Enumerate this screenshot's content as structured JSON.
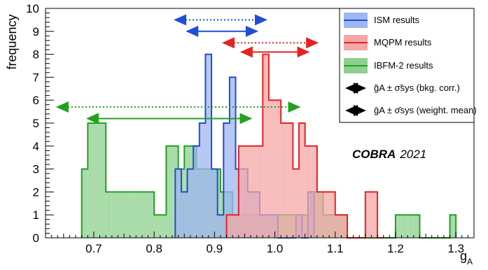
{
  "chart_data": {
    "type": "histogram",
    "xlabel_main": "g",
    "xlabel_sub": "A",
    "ylabel": "frequency",
    "xlim": [
      0.62,
      1.33
    ],
    "ylim": [
      0,
      10
    ],
    "bin_width": 0.01,
    "x_ticks": [
      "0.7",
      "0.8",
      "0.9",
      "1.0",
      "1.1",
      "1.2",
      "1.3"
    ],
    "x_tick_values": [
      0.7,
      0.8,
      0.9,
      1.0,
      1.1,
      1.2,
      1.3
    ],
    "y_ticks": [
      "0",
      "1",
      "2",
      "3",
      "4",
      "5",
      "6",
      "7",
      "8",
      "9",
      "10"
    ],
    "y_tick_values": [
      0,
      1,
      2,
      3,
      4,
      5,
      6,
      7,
      8,
      9,
      10
    ],
    "series": [
      {
        "name": "IBFM-2 results",
        "stroke": "#22a022",
        "fill": "#8ed08e",
        "bins": [
          [
            0.68,
            3
          ],
          [
            0.69,
            5
          ],
          [
            0.7,
            5
          ],
          [
            0.71,
            5
          ],
          [
            0.72,
            2
          ],
          [
            0.73,
            2
          ],
          [
            0.74,
            2
          ],
          [
            0.75,
            2
          ],
          [
            0.76,
            2
          ],
          [
            0.77,
            2
          ],
          [
            0.78,
            2
          ],
          [
            0.79,
            2
          ],
          [
            0.8,
            1
          ],
          [
            0.81,
            1
          ],
          [
            0.82,
            4
          ],
          [
            0.83,
            4
          ],
          [
            0.84,
            3
          ],
          [
            0.85,
            4
          ],
          [
            0.86,
            4
          ],
          [
            0.87,
            3
          ],
          [
            0.88,
            3
          ],
          [
            0.89,
            3
          ],
          [
            0.9,
            3
          ],
          [
            0.91,
            2
          ],
          [
            0.92,
            2
          ],
          [
            0.93,
            1
          ],
          [
            0.94,
            1
          ],
          [
            0.95,
            1
          ],
          [
            0.96,
            1
          ],
          [
            0.97,
            1
          ],
          [
            0.98,
            1
          ],
          [
            0.99,
            1
          ],
          [
            1.0,
            1
          ],
          [
            1.01,
            1
          ],
          [
            1.02,
            1
          ],
          [
            1.03,
            1
          ],
          [
            1.04,
            1
          ],
          [
            1.05,
            1
          ],
          [
            1.06,
            2
          ],
          [
            1.07,
            2
          ],
          [
            1.08,
            1
          ],
          [
            1.09,
            1
          ],
          [
            1.1,
            1
          ],
          [
            1.11,
            1
          ],
          [
            1.12,
            0
          ],
          [
            1.13,
            0
          ],
          [
            1.14,
            0
          ],
          [
            1.15,
            0
          ],
          [
            1.16,
            0
          ],
          [
            1.17,
            0
          ],
          [
            1.18,
            0
          ],
          [
            1.19,
            0
          ],
          [
            1.2,
            1
          ],
          [
            1.21,
            1
          ],
          [
            1.22,
            1
          ],
          [
            1.23,
            1
          ],
          [
            1.24,
            0
          ],
          [
            1.25,
            0
          ],
          [
            1.26,
            0
          ],
          [
            1.27,
            0
          ],
          [
            1.28,
            0
          ],
          [
            1.29,
            1
          ]
        ]
      },
      {
        "name": "ISM results",
        "stroke": "#1d4fd6",
        "fill": "#9fb6f2",
        "bins": [
          [
            0.835,
            3
          ],
          [
            0.845,
            2
          ],
          [
            0.855,
            3
          ],
          [
            0.865,
            4
          ],
          [
            0.875,
            5
          ],
          [
            0.885,
            8
          ],
          [
            0.895,
            3
          ],
          [
            0.905,
            1
          ],
          [
            0.915,
            5
          ],
          [
            0.925,
            7
          ],
          [
            0.935,
            3
          ],
          [
            0.945,
            3
          ],
          [
            0.955,
            2
          ],
          [
            0.965,
            2
          ],
          [
            0.975,
            1
          ],
          [
            0.985,
            1
          ],
          [
            0.995,
            1
          ],
          [
            1.005,
            0
          ],
          [
            1.015,
            0
          ],
          [
            1.025,
            0
          ],
          [
            1.035,
            1
          ],
          [
            1.045,
            0
          ],
          [
            1.055,
            2
          ]
        ]
      },
      {
        "name": "MQPM results",
        "stroke": "#e52222",
        "fill": "#f4a7a7",
        "bins": [
          [
            0.92,
            1
          ],
          [
            0.93,
            1
          ],
          [
            0.94,
            4
          ],
          [
            0.95,
            4
          ],
          [
            0.96,
            4
          ],
          [
            0.97,
            4
          ],
          [
            0.98,
            8
          ],
          [
            0.99,
            6
          ],
          [
            1.0,
            6
          ],
          [
            1.01,
            5
          ],
          [
            1.02,
            5
          ],
          [
            1.03,
            3
          ],
          [
            1.04,
            5
          ],
          [
            1.05,
            4
          ],
          [
            1.06,
            4
          ],
          [
            1.07,
            2
          ],
          [
            1.08,
            2
          ],
          [
            1.09,
            2
          ],
          [
            1.1,
            1
          ],
          [
            1.11,
            1
          ],
          [
            1.12,
            0
          ],
          [
            1.13,
            0
          ],
          [
            1.14,
            0
          ],
          [
            1.15,
            2
          ],
          [
            1.16,
            2
          ],
          [
            1.17,
            0
          ]
        ]
      }
    ],
    "intervals": [
      {
        "series": "ISM results",
        "style": "dotted",
        "y": 9.5,
        "x0": 0.83,
        "x1": 0.99
      },
      {
        "series": "ISM results",
        "style": "solid",
        "y": 9.0,
        "x0": 0.85,
        "x1": 0.975
      },
      {
        "series": "MQPM results",
        "style": "dotted",
        "y": 8.5,
        "x0": 0.91,
        "x1": 1.075
      },
      {
        "series": "MQPM results",
        "style": "solid",
        "y": 8.1,
        "x0": 0.94,
        "x1": 1.06
      },
      {
        "series": "IBFM-2 results",
        "style": "dotted",
        "y": 5.7,
        "x0": 0.635,
        "x1": 1.045
      },
      {
        "series": "IBFM-2 results",
        "style": "solid",
        "y": 5.2,
        "x0": 0.685,
        "x1": 0.965
      }
    ],
    "legend": {
      "position": "top-right",
      "entries": [
        {
          "label": "ISM results",
          "kind": "box",
          "color": "#1d4fd6",
          "fill": "#9fb6f2"
        },
        {
          "label": "MQPM results",
          "kind": "box",
          "color": "#e52222",
          "fill": "#f4a7a7"
        },
        {
          "label": "IBFM-2 results",
          "kind": "box",
          "color": "#22a022",
          "fill": "#8ed08e"
        },
        {
          "label": "g̃A ± σ̃sys (bkg. corr.)",
          "kind": "dotted-arrow",
          "color": "#000000"
        },
        {
          "label": "ḡA ± σ̄sys (weight. mean)",
          "kind": "solid-arrow",
          "color": "#000000"
        }
      ]
    },
    "annotation": {
      "bold_italic": "COBRA",
      "normal": "2021"
    }
  }
}
